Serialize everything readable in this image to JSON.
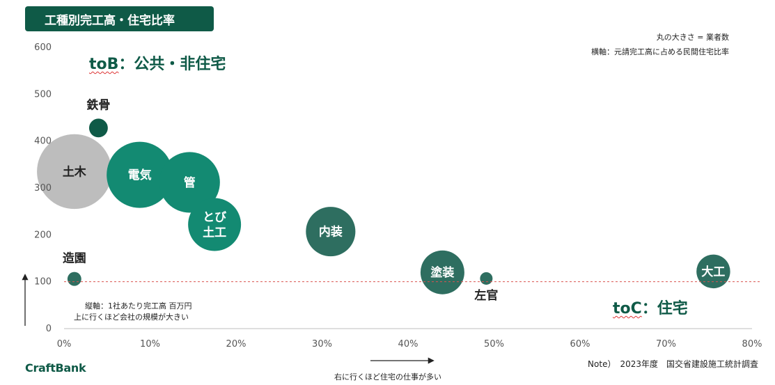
{
  "header": {
    "title": "工種別完工高・住宅比率"
  },
  "notes": {
    "size_legend": "丸の大きさ = 業者数",
    "x_explain": "横軸：元請完工高に占める民間住宅比率",
    "y_explain_1": "縦軸：1社あたり完工高 百万円",
    "y_explain_2": "上に行くほど会社の規模が大きい",
    "x_hint": "右に行くほど住宅の仕事が多い",
    "source": "Note）　2023年度　国交省建設施工統計調査"
  },
  "zones": {
    "tob_word": "toB",
    "tob_rest": "：公共・非住宅",
    "toc_word": "toC",
    "toc_rest": "：住宅"
  },
  "brand": {
    "name": "CraftBank"
  },
  "colors": {
    "teal_bright": "#138a72",
    "teal_mid": "#2e6e60",
    "teal_dark": "#0f5a47",
    "grey": "#bdbdbd",
    "ref_line": "#d9534f"
  },
  "chart_data": {
    "type": "bubble",
    "xlim": [
      0,
      0.8
    ],
    "ylim": [
      0,
      600
    ],
    "x_ticks": [
      "0%",
      "10%",
      "20%",
      "30%",
      "40%",
      "50%",
      "60%",
      "70%",
      "80%"
    ],
    "y_ticks": [
      "0",
      "100",
      "200",
      "300",
      "400",
      "500",
      "600"
    ],
    "reference_line_y": 100,
    "grid": false,
    "points": [
      {
        "label": "鉄骨",
        "x": 0.04,
        "y": 428,
        "size": 2.0,
        "color": "#0f5a47",
        "label_pos": "above",
        "label_color": "#222"
      },
      {
        "label": "土木",
        "x": 0.012,
        "y": 335,
        "size": 32,
        "color": "#bdbdbd",
        "label_pos": "inside",
        "label_color": "#222"
      },
      {
        "label": "電気",
        "x": 0.088,
        "y": 328,
        "size": 25,
        "color": "#138a72",
        "label_pos": "inside",
        "label_color": "#ffffff"
      },
      {
        "label": "管",
        "x": 0.146,
        "y": 312,
        "size": 21,
        "color": "#138a72",
        "label_pos": "inside",
        "label_color": "#ffffff"
      },
      {
        "label": "とび\n土工",
        "x": 0.175,
        "y": 222,
        "size": 16,
        "color": "#138a72",
        "label_pos": "inside",
        "label_color": "#ffffff"
      },
      {
        "label": "内装",
        "x": 0.31,
        "y": 207,
        "size": 14,
        "color": "#2e6e60",
        "label_pos": "inside",
        "label_color": "#ffffff"
      },
      {
        "label": "造園",
        "x": 0.012,
        "y": 106,
        "size": 1.1,
        "color": "#2e6e60",
        "label_pos": "above",
        "label_color": "#222"
      },
      {
        "label": "塗装",
        "x": 0.44,
        "y": 120,
        "size": 11,
        "color": "#2e6e60",
        "label_pos": "inside",
        "label_color": "#ffffff"
      },
      {
        "label": "左官",
        "x": 0.491,
        "y": 107,
        "size": 0.9,
        "color": "#2e6e60",
        "label_pos": "below",
        "label_color": "#222"
      },
      {
        "label": "大工",
        "x": 0.755,
        "y": 122,
        "size": 6.5,
        "color": "#2e6e60",
        "label_pos": "inside",
        "label_color": "#ffffff"
      }
    ]
  }
}
